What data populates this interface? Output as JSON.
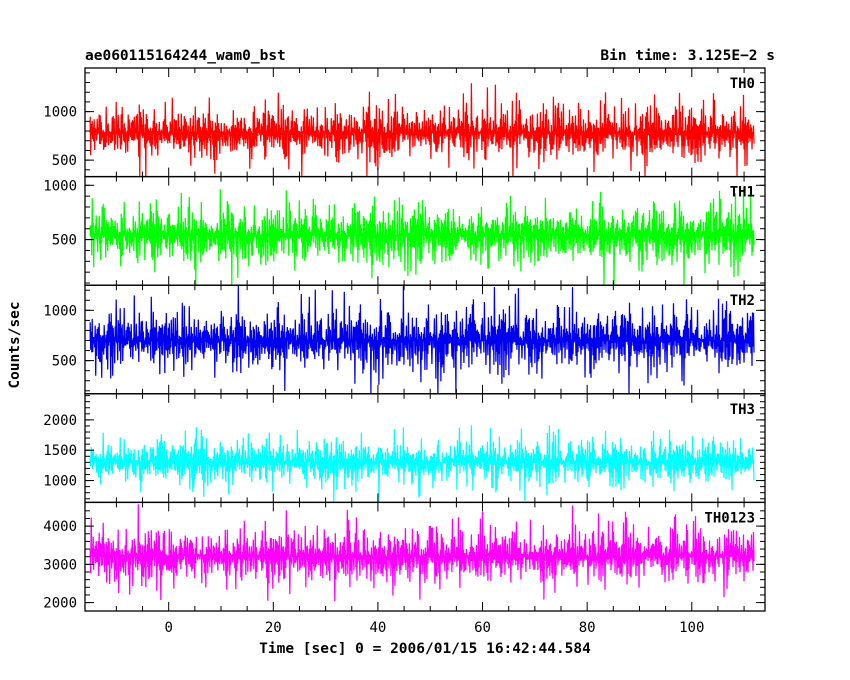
{
  "header": {
    "left_title": "ae060115164244_wam0_bst",
    "right_title": "Bin time: 3.125E−2 s"
  },
  "chart_data": {
    "type": "line",
    "title": "ae060115164244_wam0_bst",
    "subtitle": "Bin time: 3.125E−2 s",
    "xlabel": "Time [sec] 0 = 2006/01/15 16:42:44.584",
    "ylabel": "Counts/sec",
    "xlim": [
      -16,
      114
    ],
    "x_ticks": [
      0,
      20,
      40,
      60,
      80,
      100
    ],
    "x_range_data": [
      -15,
      112
    ],
    "bin_time_s": 0.03125,
    "grid": false,
    "series": [
      {
        "name": "TH0",
        "color": "#ff0000",
        "ylim": [
          330,
          1450
        ],
        "yticks": [
          500,
          1000
        ],
        "mean": 780,
        "typical_low": 480,
        "typical_high": 1050,
        "min": 330,
        "max": 1450
      },
      {
        "name": "TH1",
        "color": "#00ff00",
        "ylim": [
          80,
          1080
        ],
        "yticks": [
          500,
          1000
        ],
        "mean": 540,
        "typical_low": 250,
        "typical_high": 820,
        "min": 80,
        "max": 1080
      },
      {
        "name": "TH2",
        "color": "#0000ee",
        "ylim": [
          170,
          1250
        ],
        "yticks": [
          500,
          1000
        ],
        "mean": 700,
        "typical_low": 380,
        "typical_high": 1030,
        "min": 170,
        "max": 1250
      },
      {
        "name": "TH3",
        "color": "#00ffff",
        "ylim": [
          640,
          2430
        ],
        "yticks": [
          1000,
          1500,
          2000
        ],
        "mean": 1310,
        "typical_low": 930,
        "typical_high": 1700,
        "min": 640,
        "max": 2430
      },
      {
        "name": "TH0123",
        "color": "#ff00ff",
        "ylim": [
          1780,
          4620
        ],
        "yticks": [
          2000,
          3000,
          4000
        ],
        "mean": 3220,
        "typical_low": 2480,
        "typical_high": 3980,
        "min": 1780,
        "max": 4620
      }
    ]
  }
}
